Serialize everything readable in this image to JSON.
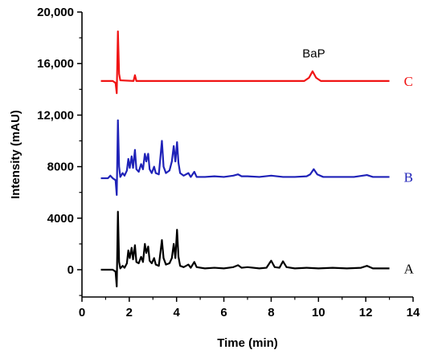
{
  "chart_data": {
    "type": "line",
    "title": "",
    "xlabel": "Time (min)",
    "ylabel": "Intensity (mAU)",
    "xlim": [
      0,
      14
    ],
    "ylim": [
      0,
      20000
    ],
    "x_ticks": [
      0,
      2,
      4,
      6,
      8,
      10,
      12,
      14
    ],
    "x_tick_labels": [
      "0",
      "2",
      "4",
      "6",
      "8",
      "10",
      "12",
      "14"
    ],
    "y_ticks": [
      0,
      4000,
      8000,
      12000,
      16000,
      20000
    ],
    "y_tick_labels": [
      "0",
      "4000",
      "8000",
      "12,000",
      "16,000",
      "20,000"
    ],
    "grid": false,
    "legend": "none",
    "annotations": [
      {
        "text": "BaP",
        "x": 9.8,
        "y": 15600
      }
    ],
    "series": [
      {
        "name": "A",
        "color": "#000000",
        "points": [
          [
            0.8,
            0
          ],
          [
            1.3,
            0
          ],
          [
            1.42,
            -150
          ],
          [
            1.47,
            -1300
          ],
          [
            1.52,
            4500
          ],
          [
            1.57,
            600
          ],
          [
            1.62,
            100
          ],
          [
            1.72,
            300
          ],
          [
            1.8,
            150
          ],
          [
            1.9,
            500
          ],
          [
            1.96,
            1500
          ],
          [
            2.02,
            900
          ],
          [
            2.1,
            1700
          ],
          [
            2.16,
            800
          ],
          [
            2.24,
            1900
          ],
          [
            2.3,
            600
          ],
          [
            2.4,
            500
          ],
          [
            2.5,
            1000
          ],
          [
            2.58,
            600
          ],
          [
            2.66,
            2000
          ],
          [
            2.72,
            1300
          ],
          [
            2.8,
            1800
          ],
          [
            2.86,
            700
          ],
          [
            2.95,
            500
          ],
          [
            3.05,
            900
          ],
          [
            3.12,
            400
          ],
          [
            3.25,
            300
          ],
          [
            3.38,
            2300
          ],
          [
            3.45,
            900
          ],
          [
            3.55,
            400
          ],
          [
            3.7,
            500
          ],
          [
            3.8,
            900
          ],
          [
            3.88,
            2000
          ],
          [
            3.95,
            900
          ],
          [
            4.02,
            3100
          ],
          [
            4.08,
            1000
          ],
          [
            4.15,
            300
          ],
          [
            4.3,
            200
          ],
          [
            4.5,
            400
          ],
          [
            4.6,
            150
          ],
          [
            4.75,
            600
          ],
          [
            4.85,
            200
          ],
          [
            5.2,
            100
          ],
          [
            5.6,
            150
          ],
          [
            6.0,
            100
          ],
          [
            6.4,
            200
          ],
          [
            6.6,
            350
          ],
          [
            6.75,
            150
          ],
          [
            7.0,
            200
          ],
          [
            7.5,
            100
          ],
          [
            7.8,
            150
          ],
          [
            8.0,
            700
          ],
          [
            8.15,
            200
          ],
          [
            8.35,
            150
          ],
          [
            8.5,
            650
          ],
          [
            8.65,
            200
          ],
          [
            9.0,
            100
          ],
          [
            9.5,
            150
          ],
          [
            10.0,
            100
          ],
          [
            10.6,
            150
          ],
          [
            11.2,
            100
          ],
          [
            11.8,
            150
          ],
          [
            12.05,
            300
          ],
          [
            12.3,
            100
          ],
          [
            12.6,
            100
          ],
          [
            13.0,
            100
          ]
        ]
      },
      {
        "name": "B",
        "color": "#1f22b8",
        "points": [
          [
            0.8,
            7100
          ],
          [
            1.1,
            7100
          ],
          [
            1.2,
            7300
          ],
          [
            1.3,
            7100
          ],
          [
            1.42,
            6950
          ],
          [
            1.47,
            5800
          ],
          [
            1.52,
            11600
          ],
          [
            1.57,
            8000
          ],
          [
            1.62,
            7200
          ],
          [
            1.72,
            7500
          ],
          [
            1.8,
            7300
          ],
          [
            1.9,
            7700
          ],
          [
            1.96,
            8600
          ],
          [
            2.02,
            7900
          ],
          [
            2.1,
            8800
          ],
          [
            2.16,
            7900
          ],
          [
            2.24,
            9300
          ],
          [
            2.3,
            7800
          ],
          [
            2.4,
            7600
          ],
          [
            2.5,
            8200
          ],
          [
            2.58,
            7800
          ],
          [
            2.66,
            9000
          ],
          [
            2.72,
            8400
          ],
          [
            2.8,
            9000
          ],
          [
            2.86,
            7800
          ],
          [
            2.95,
            7500
          ],
          [
            3.05,
            8000
          ],
          [
            3.12,
            7500
          ],
          [
            3.25,
            7400
          ],
          [
            3.38,
            10000
          ],
          [
            3.45,
            8000
          ],
          [
            3.55,
            7500
          ],
          [
            3.7,
            7700
          ],
          [
            3.8,
            8400
          ],
          [
            3.88,
            9600
          ],
          [
            3.95,
            8400
          ],
          [
            4.02,
            9900
          ],
          [
            4.08,
            8300
          ],
          [
            4.15,
            7500
          ],
          [
            4.3,
            7300
          ],
          [
            4.5,
            7500
          ],
          [
            4.6,
            7200
          ],
          [
            4.75,
            7600
          ],
          [
            4.85,
            7200
          ],
          [
            5.2,
            7200
          ],
          [
            5.6,
            7250
          ],
          [
            6.0,
            7200
          ],
          [
            6.4,
            7300
          ],
          [
            6.6,
            7400
          ],
          [
            6.75,
            7250
          ],
          [
            7.0,
            7250
          ],
          [
            7.5,
            7200
          ],
          [
            8.0,
            7300
          ],
          [
            8.5,
            7200
          ],
          [
            9.0,
            7200
          ],
          [
            9.5,
            7250
          ],
          [
            9.65,
            7400
          ],
          [
            9.8,
            7800
          ],
          [
            9.95,
            7400
          ],
          [
            10.2,
            7200
          ],
          [
            10.8,
            7200
          ],
          [
            11.5,
            7200
          ],
          [
            12.05,
            7350
          ],
          [
            12.3,
            7200
          ],
          [
            12.6,
            7200
          ],
          [
            13.0,
            7200
          ]
        ]
      },
      {
        "name": "C",
        "color": "#f01414",
        "points": [
          [
            0.8,
            14650
          ],
          [
            1.3,
            14650
          ],
          [
            1.42,
            14500
          ],
          [
            1.47,
            13700
          ],
          [
            1.52,
            18500
          ],
          [
            1.57,
            15200
          ],
          [
            1.62,
            14700
          ],
          [
            2.18,
            14650
          ],
          [
            2.24,
            15100
          ],
          [
            2.3,
            14650
          ],
          [
            9.4,
            14650
          ],
          [
            9.6,
            14900
          ],
          [
            9.75,
            15400
          ],
          [
            9.9,
            14900
          ],
          [
            10.1,
            14650
          ],
          [
            13.0,
            14650
          ]
        ]
      }
    ]
  }
}
